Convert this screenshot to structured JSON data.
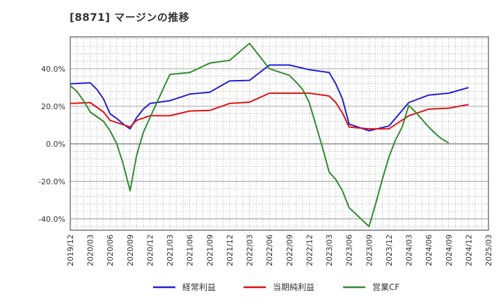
{
  "chart_data": {
    "type": "line",
    "title": "[8871]  マージンの推移",
    "x": [
      "2019/12",
      "2020/03",
      "2020/06",
      "2020/09",
      "2020/12",
      "2021/03",
      "2021/06",
      "2021/09",
      "2021/12",
      "2022/03",
      "2022/06",
      "2022/09",
      "2022/12",
      "2023/03",
      "2023/06",
      "2023/09",
      "2023/12",
      "2024/03",
      "2024/06",
      "2024/09",
      "2024/12",
      "2025/03"
    ],
    "ylim": [
      -46,
      57
    ],
    "yticks": [
      -40,
      -20,
      0,
      20,
      40
    ],
    "ytick_labels": [
      "-40.0%",
      "-20.0%",
      "0.0%",
      "20.0%",
      "40.0%"
    ],
    "grid": true,
    "legend_position": "bottom",
    "series": [
      {
        "name": "経常利益",
        "color": "#1f1fd6",
        "points": [
          [
            "2019/12",
            32
          ],
          [
            "2020/03",
            32.5
          ],
          [
            "2020/04",
            29
          ],
          [
            "2020/05",
            24
          ],
          [
            "2020/06",
            16
          ],
          [
            "2020/07",
            13.5
          ],
          [
            "2020/08",
            10.5
          ],
          [
            "2020/09",
            8
          ],
          [
            "2020/10",
            14
          ],
          [
            "2020/11",
            18.5
          ],
          [
            "2020/12",
            21.5
          ],
          [
            "2021/03",
            23
          ],
          [
            "2021/06",
            26.5
          ],
          [
            "2021/09",
            27.5
          ],
          [
            "2021/12",
            33.5
          ],
          [
            "2022/03",
            33.8
          ],
          [
            "2022/06",
            42
          ],
          [
            "2022/09",
            42
          ],
          [
            "2022/12",
            39.5
          ],
          [
            "2023/03",
            38
          ],
          [
            "2023/04",
            32
          ],
          [
            "2023/05",
            24
          ],
          [
            "2023/06",
            10.5
          ],
          [
            "2023/09",
            7
          ],
          [
            "2023/12",
            9.5
          ],
          [
            "2024/03",
            22
          ],
          [
            "2024/06",
            26
          ],
          [
            "2024/09",
            27
          ],
          [
            "2024/12",
            30
          ]
        ]
      },
      {
        "name": "当期純利益",
        "color": "#e01010",
        "points": [
          [
            "2019/12",
            21.5
          ],
          [
            "2020/03",
            22
          ],
          [
            "2020/05",
            17
          ],
          [
            "2020/06",
            12.5
          ],
          [
            "2020/09",
            9
          ],
          [
            "2020/10",
            12.5
          ],
          [
            "2020/12",
            15
          ],
          [
            "2021/03",
            15
          ],
          [
            "2021/06",
            17.5
          ],
          [
            "2021/09",
            17.8
          ],
          [
            "2021/12",
            21.5
          ],
          [
            "2022/03",
            22.2
          ],
          [
            "2022/06",
            27
          ],
          [
            "2022/09",
            27
          ],
          [
            "2022/12",
            27
          ],
          [
            "2023/03",
            25.5
          ],
          [
            "2023/04",
            22
          ],
          [
            "2023/05",
            16.5
          ],
          [
            "2023/06",
            9
          ],
          [
            "2023/09",
            8
          ],
          [
            "2023/12",
            8
          ],
          [
            "2024/03",
            15
          ],
          [
            "2024/06",
            18.5
          ],
          [
            "2024/09",
            19
          ],
          [
            "2024/12",
            21
          ]
        ]
      },
      {
        "name": "営業CF",
        "color": "#2e8b2e",
        "points": [
          [
            "2019/12",
            31
          ],
          [
            "2020/01",
            28
          ],
          [
            "2020/02",
            23
          ],
          [
            "2020/03",
            17
          ],
          [
            "2020/05",
            12
          ],
          [
            "2020/06",
            7
          ],
          [
            "2020/07",
            0
          ],
          [
            "2020/08",
            -11
          ],
          [
            "2020/09",
            -25
          ],
          [
            "2020/10",
            -6
          ],
          [
            "2020/11",
            6
          ],
          [
            "2020/12",
            14
          ],
          [
            "2021/03",
            37
          ],
          [
            "2021/06",
            38
          ],
          [
            "2021/09",
            43
          ],
          [
            "2021/12",
            44.5
          ],
          [
            "2022/03",
            53.5
          ],
          [
            "2022/06",
            40
          ],
          [
            "2022/09",
            36.5
          ],
          [
            "2022/10",
            33
          ],
          [
            "2022/11",
            29
          ],
          [
            "2022/12",
            22
          ],
          [
            "2023/01",
            10
          ],
          [
            "2023/02",
            -2
          ],
          [
            "2023/03",
            -15
          ],
          [
            "2023/04",
            -19
          ],
          [
            "2023/05",
            -25
          ],
          [
            "2023/06",
            -34
          ],
          [
            "2023/09",
            -44
          ],
          [
            "2023/10",
            -32
          ],
          [
            "2023/11",
            -19
          ],
          [
            "2023/12",
            -7
          ],
          [
            "2024/01",
            2
          ],
          [
            "2024/02",
            9
          ],
          [
            "2024/03",
            20.5
          ],
          [
            "2024/04",
            17
          ],
          [
            "2024/05",
            13
          ],
          [
            "2024/06",
            9
          ],
          [
            "2024/07",
            5.5
          ],
          [
            "2024/08",
            2.5
          ],
          [
            "2024/09",
            0.5
          ]
        ]
      }
    ]
  }
}
